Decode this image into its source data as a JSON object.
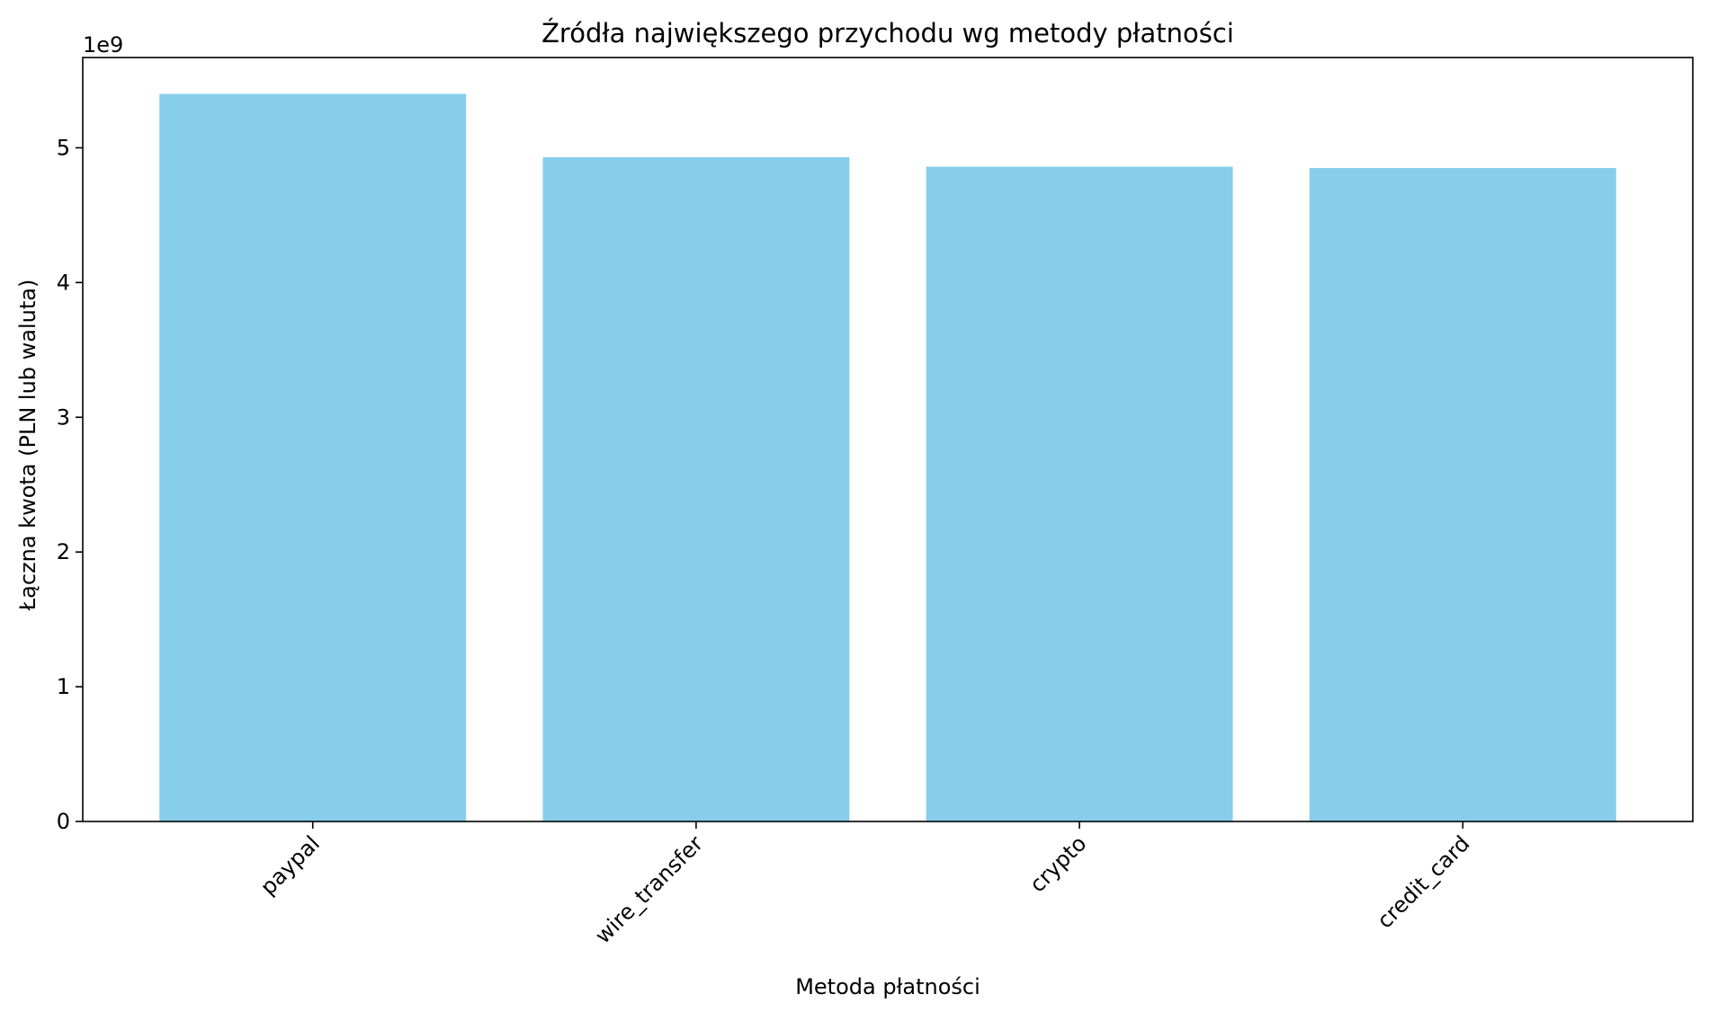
{
  "chart_data": {
    "type": "bar",
    "title": "Źródła największego przychodu wg metody płatności",
    "xlabel": "Metoda płatności",
    "ylabel": "Łączna kwota (PLN lub waluta)",
    "scale_label": "1e9",
    "categories": [
      "paypal",
      "wire_transfer",
      "crypto",
      "credit_card"
    ],
    "values": [
      5400000000,
      4930000000,
      4860000000,
      4850000000
    ],
    "ylim": [
      0,
      5670000000
    ],
    "yticks": [
      0,
      1000000000,
      2000000000,
      3000000000,
      4000000000,
      5000000000
    ],
    "ytick_labels": [
      "0",
      "1",
      "2",
      "3",
      "4",
      "5"
    ],
    "bar_color": "#87ceeb",
    "grid": false,
    "legend": "none"
  }
}
